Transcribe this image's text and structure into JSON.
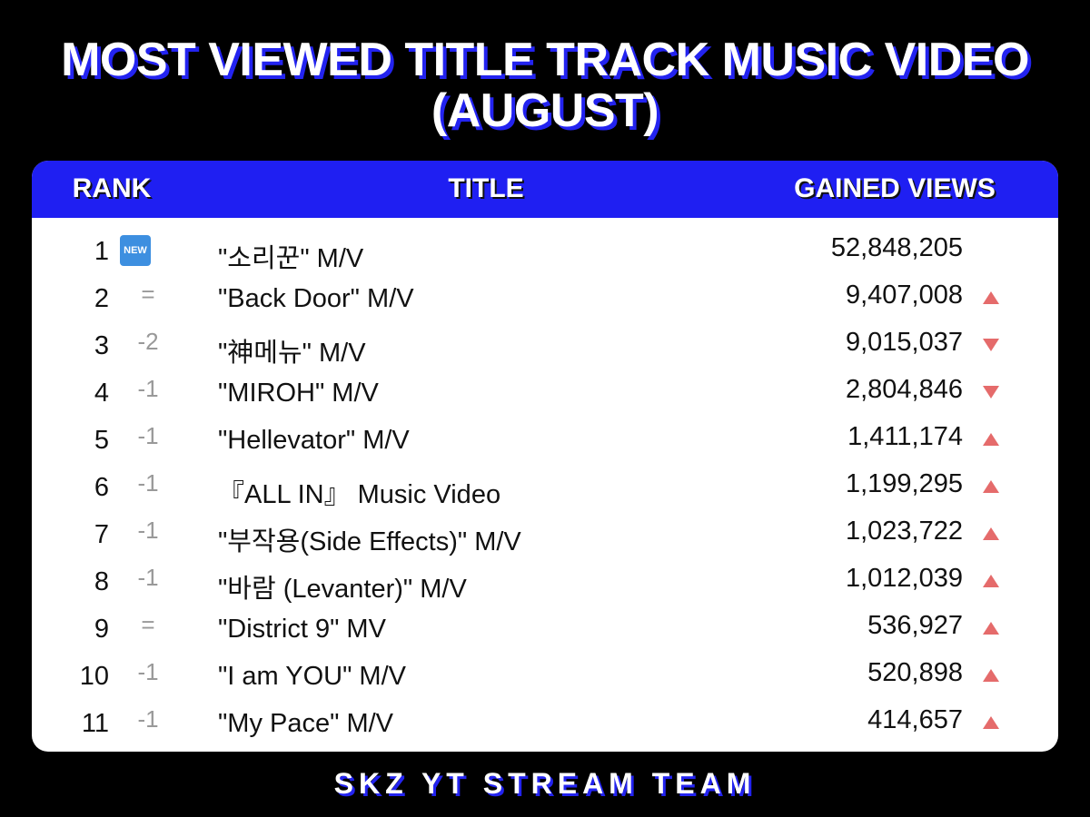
{
  "header": {
    "title_lines": [
      "MOST VIEWED TITLE TRACK MUSIC VIDEO",
      "(AUGUST)"
    ]
  },
  "table": {
    "columns": [
      "RANK",
      "TITLE",
      "GAINED VIEWS"
    ],
    "rows": [
      {
        "rank": 1,
        "badge": "NEW",
        "title": "\"소리꾼\" M/V",
        "views": "52,848,205"
      },
      {
        "rank": 2,
        "change": "=",
        "title": "\"Back Door\" M/V",
        "views": "9,407,008",
        "trend": "up"
      },
      {
        "rank": 3,
        "change": "-2",
        "title": "\"神메뉴\" M/V",
        "views": "9,015,037",
        "trend": "down"
      },
      {
        "rank": 4,
        "change": "-1",
        "title": "\"MIROH\" M/V",
        "views": "2,804,846",
        "trend": "down"
      },
      {
        "rank": 5,
        "change": "-1",
        "title": "\"Hellevator\" M/V",
        "views": "1,411,174",
        "trend": "up"
      },
      {
        "rank": 6,
        "change": "-1",
        "title": "『ALL IN』 Music Video",
        "views": "1,199,295",
        "trend": "up"
      },
      {
        "rank": 7,
        "change": "-1",
        "title": "\"부작용(Side Effects)\" M/V",
        "views": "1,023,722",
        "trend": "up"
      },
      {
        "rank": 8,
        "change": "-1",
        "title": "\"바람 (Levanter)\" M/V",
        "views": "1,012,039",
        "trend": "up"
      },
      {
        "rank": 9,
        "change": "=",
        "title": "\"District 9\" MV",
        "views": "536,927",
        "trend": "up"
      },
      {
        "rank": 10,
        "change": "-1",
        "title": "\"I am YOU\" M/V",
        "views": "520,898",
        "trend": "up"
      },
      {
        "rank": 11,
        "change": "-1",
        "title": "\"My Pace\" M/V",
        "views": "414,657",
        "trend": "up"
      }
    ]
  },
  "footer": {
    "text": "SKZ YT STREAM TEAM"
  }
}
